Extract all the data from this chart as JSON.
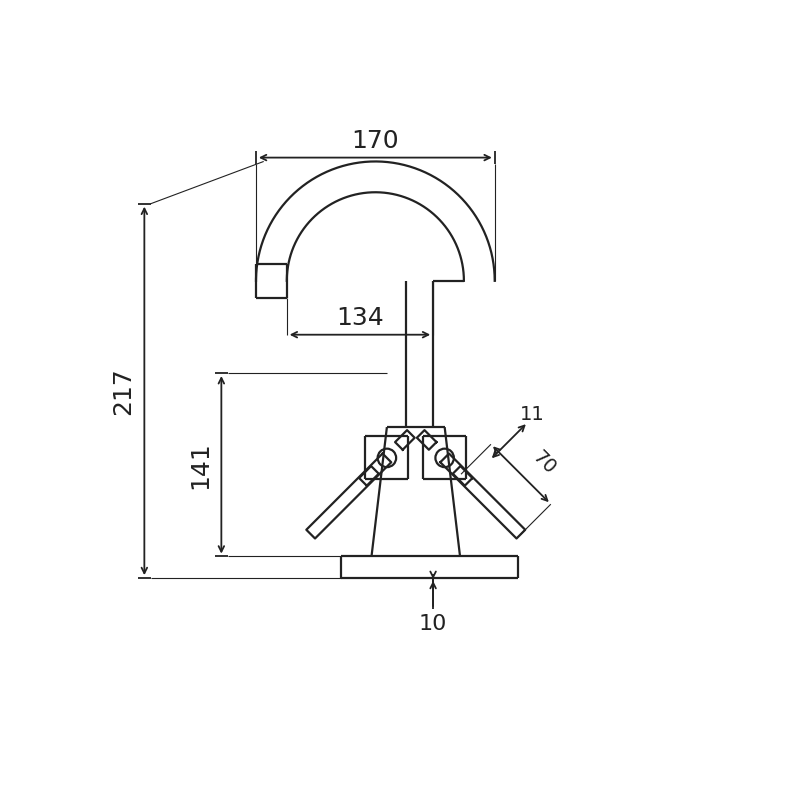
{
  "bg_color": "#ffffff",
  "line_color": "#222222",
  "dim_color": "#222222",
  "lw_main": 1.6,
  "lw_dim": 1.3,
  "lw_thin": 1.0,
  "fig_width": 8.0,
  "fig_height": 8.0
}
